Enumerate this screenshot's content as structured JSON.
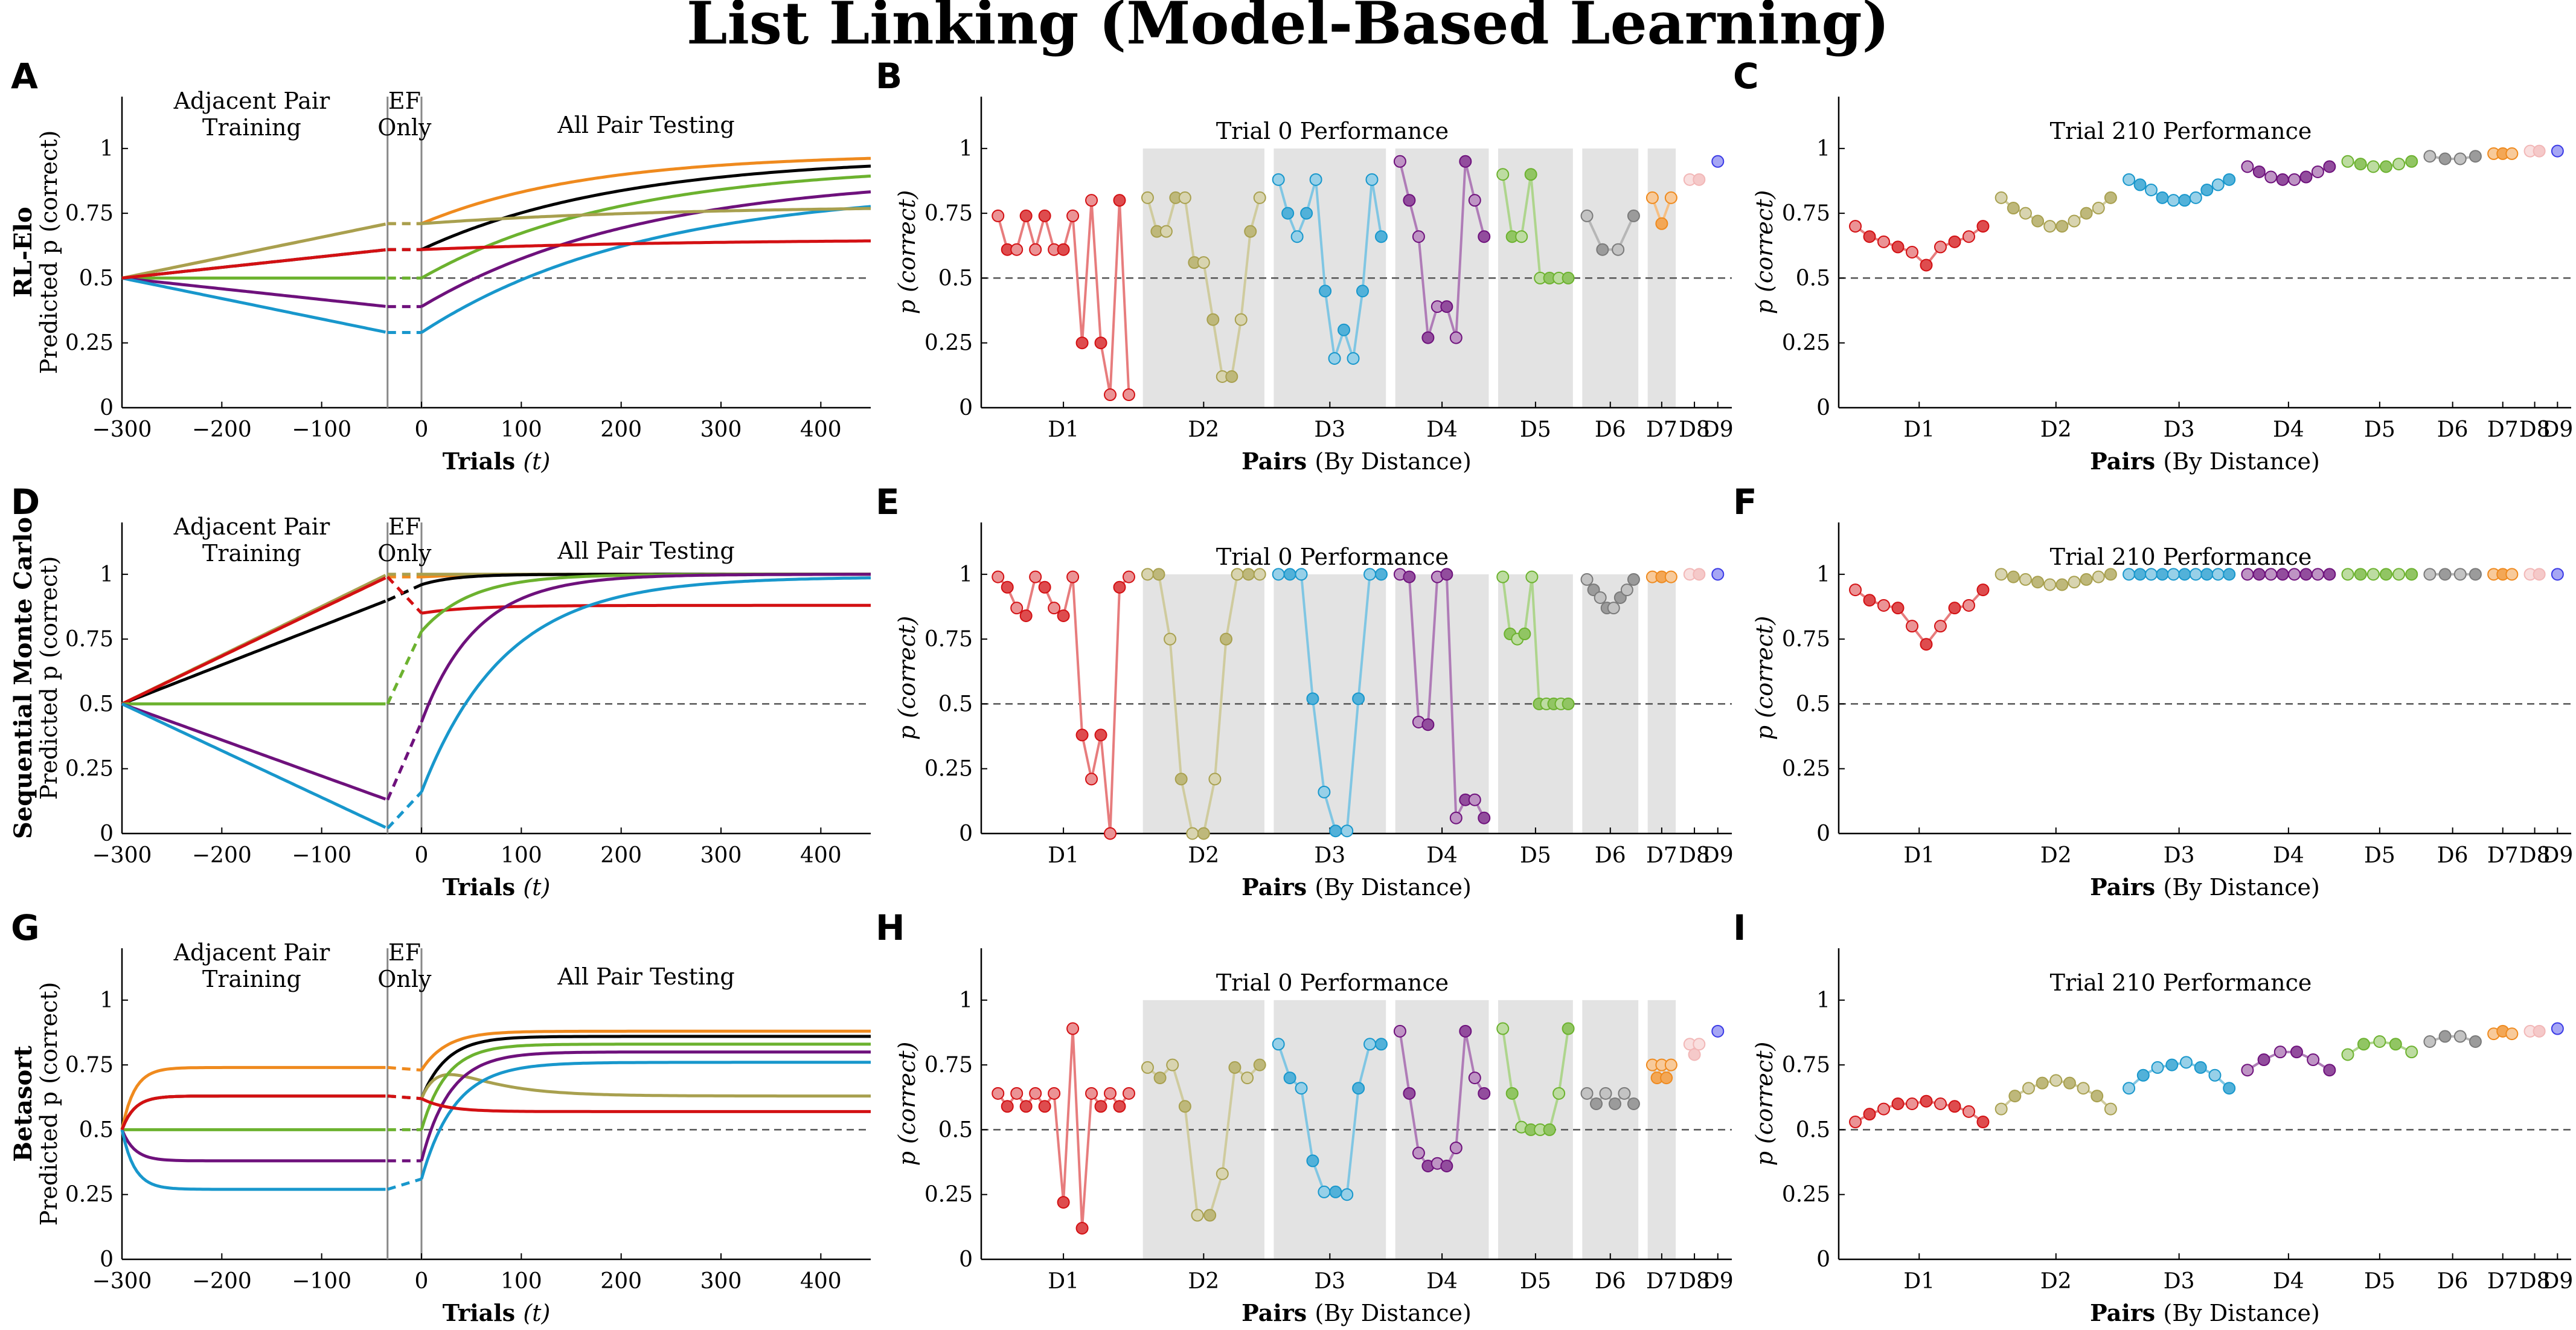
{
  "title": "List Linking (Model-Based Learning)",
  "colors": {
    "D1": "#d31013",
    "D2": "#a8a04f",
    "D3": "#1897cc",
    "D4": "#6e117c",
    "D5": "#6cb22f",
    "D6": "#7a7a7a",
    "D7": "#ef8a1e",
    "D8": "#f2b7b7",
    "D9": "#3a3ae6",
    "black": "#000000",
    "axis": "#000000",
    "ref": "#555555",
    "band": "#e3e3e3"
  },
  "rows": [
    {
      "id": "row1",
      "ylabel_bold": "RL-Elo",
      "ylabel": "Predicted p (correct)"
    },
    {
      "id": "row2",
      "ylabel_bold": "Sequential Monte Carlo",
      "ylabel": "Predicted p (correct)"
    },
    {
      "id": "row3",
      "ylabel_bold": "Betasort",
      "ylabel": "Predicted p (correct)"
    }
  ],
  "panel_letters": [
    "A",
    "B",
    "C",
    "D",
    "E",
    "F",
    "G",
    "H",
    "I"
  ],
  "yticks": [
    "0",
    "0.25",
    "0.5",
    "0.75",
    "1"
  ],
  "yticks_values": [
    0,
    0.25,
    0.5,
    0.75,
    1
  ],
  "xticks_time": [
    "−300",
    "−200",
    "−100",
    "0",
    "100",
    "200",
    "300",
    "400"
  ],
  "xticks_time_values": [
    -300,
    -200,
    -100,
    0,
    100,
    200,
    300,
    400
  ],
  "time_panel": {
    "phase_labels": {
      "training_1": "Adjacent Pair",
      "training_2": "Training",
      "ef_1": "EF",
      "ef_2": "Only",
      "testing": "All Pair Testing"
    },
    "xlabel_bold": "Trials",
    "xlabel_rest": "(t)",
    "xlim": [
      -300,
      450
    ],
    "ylim": [
      0,
      1.2
    ],
    "phase_bounds": [
      -34,
      0
    ]
  },
  "distance_panel": {
    "ylabel": "p (correct)",
    "xlabel_bold": "Pairs",
    "xlabel_rest": "(By Distance)",
    "titles": [
      "Trial 0 Performance",
      "Trial 210 Performance"
    ],
    "groups": [
      "D1",
      "D2",
      "D3",
      "D4",
      "D5",
      "D6",
      "D7",
      "D8",
      "D9"
    ]
  },
  "chart_data": [
    {
      "panel": "A",
      "type": "line",
      "title": "",
      "xlabel": "Trials (t)",
      "ylabel": "Predicted p (correct)",
      "xlim": [
        -300,
        450
      ],
      "ylim": [
        0,
        1.2
      ],
      "series": [
        {
          "name": "D7",
          "color_key": "D7",
          "pre_end": 0.71,
          "gap_end": 0.71,
          "final": 0.98,
          "rate": 0.006
        },
        {
          "name": "D6",
          "color_key": "black",
          "pre_end": 0.61,
          "gap_end": 0.61,
          "final": 0.97,
          "rate": 0.005
        },
        {
          "name": "D5",
          "color_key": "D5",
          "pre_end": 0.5,
          "gap_end": 0.5,
          "final": 0.94,
          "rate": 0.005
        },
        {
          "name": "D4",
          "color_key": "D4",
          "pre_end": 0.39,
          "gap_end": 0.39,
          "final": 0.9,
          "rate": 0.0045
        },
        {
          "name": "D3",
          "color_key": "D3",
          "pre_end": 0.29,
          "gap_end": 0.29,
          "final": 0.85,
          "rate": 0.0045
        },
        {
          "name": "D2",
          "color_key": "D2",
          "pre_end": 0.71,
          "gap_end": 0.71,
          "final": 0.78,
          "rate": 0.004
        },
        {
          "name": "D1",
          "color_key": "D1",
          "pre_end": 0.61,
          "gap_end": 0.61,
          "final": 0.65,
          "rate": 0.004
        }
      ]
    },
    {
      "panel": "B",
      "type": "scatter",
      "title": "Trial 0 Performance",
      "groups": {
        "D1": [
          0.74,
          0.61,
          0.61,
          0.74,
          0.61,
          0.74,
          0.61,
          0.61,
          0.74,
          0.25,
          0.8,
          0.25,
          0.05,
          0.8,
          0.05
        ],
        "D2": [
          0.81,
          0.68,
          0.68,
          0.81,
          0.81,
          0.56,
          0.56,
          0.34,
          0.12,
          0.12,
          0.34,
          0.68,
          0.81
        ],
        "D3": [
          0.88,
          0.75,
          0.66,
          0.75,
          0.88,
          0.45,
          0.19,
          0.3,
          0.19,
          0.45,
          0.88,
          0.66
        ],
        "D4": [
          0.95,
          0.8,
          0.66,
          0.27,
          0.39,
          0.39,
          0.27,
          0.95,
          0.8,
          0.66
        ],
        "D5": [
          0.9,
          0.66,
          0.66,
          0.9,
          0.5,
          0.5,
          0.5,
          0.5
        ],
        "D6": [
          0.74,
          0.61,
          0.61,
          0.74
        ],
        "D7": [
          0.81,
          0.71,
          0.81
        ],
        "D8": [
          0.88,
          0.88
        ],
        "D9": [
          0.95
        ]
      }
    },
    {
      "panel": "C",
      "type": "scatter",
      "title": "Trial 210 Performance",
      "groups": {
        "D1": [
          0.7,
          0.66,
          0.64,
          0.62,
          0.6,
          0.55,
          0.62,
          0.64,
          0.66,
          0.7
        ],
        "D2": [
          0.81,
          0.77,
          0.75,
          0.72,
          0.7,
          0.7,
          0.72,
          0.75,
          0.77,
          0.81
        ],
        "D3": [
          0.88,
          0.86,
          0.84,
          0.81,
          0.8,
          0.8,
          0.81,
          0.84,
          0.86,
          0.88
        ],
        "D4": [
          0.93,
          0.91,
          0.89,
          0.88,
          0.88,
          0.89,
          0.91,
          0.93
        ],
        "D5": [
          0.95,
          0.94,
          0.93,
          0.93,
          0.94,
          0.95
        ],
        "D6": [
          0.97,
          0.96,
          0.96,
          0.97
        ],
        "D7": [
          0.98,
          0.98,
          0.98
        ],
        "D8": [
          0.99,
          0.99
        ],
        "D9": [
          0.99
        ]
      }
    },
    {
      "panel": "D",
      "type": "line",
      "title": "",
      "xlabel": "Trials (t)",
      "ylabel": "Predicted p (correct)",
      "xlim": [
        -300,
        450
      ],
      "ylim": [
        0,
        1.2
      ],
      "series": [
        {
          "name": "D7",
          "color_key": "D7",
          "pre_end": 0.99,
          "gap_end": 0.99,
          "final": 1.0,
          "rate": 0.02
        },
        {
          "name": "D2",
          "color_key": "D2",
          "pre_end": 1.0,
          "gap_end": 1.0,
          "final": 1.0,
          "rate": 0.02
        },
        {
          "name": "D6",
          "color_key": "black",
          "pre_end": 0.9,
          "gap_end": 0.96,
          "final": 1.0,
          "rate": 0.03
        },
        {
          "name": "D1",
          "color_key": "D1",
          "pre_end": 0.99,
          "gap_end": 0.85,
          "final": 0.88,
          "rate": 0.02
        },
        {
          "name": "D5",
          "color_key": "D5",
          "pre_end": 0.5,
          "gap_end": 0.78,
          "final": 1.0,
          "rate": 0.02
        },
        {
          "name": "D4",
          "color_key": "D4",
          "pre_end": 0.13,
          "gap_end": 0.43,
          "final": 1.0,
          "rate": 0.018
        },
        {
          "name": "D3",
          "color_key": "D3",
          "pre_end": 0.02,
          "gap_end": 0.16,
          "final": 0.99,
          "rate": 0.012
        }
      ]
    },
    {
      "panel": "E",
      "type": "scatter",
      "title": "Trial 0 Performance",
      "groups": {
        "D1": [
          0.99,
          0.95,
          0.87,
          0.84,
          0.99,
          0.95,
          0.87,
          0.84,
          0.99,
          0.38,
          0.21,
          0.38,
          0.0,
          0.95,
          0.99
        ],
        "D2": [
          1.0,
          1.0,
          0.75,
          0.21,
          0.0,
          0.0,
          0.21,
          0.75,
          1.0,
          1.0,
          1.0
        ],
        "D3": [
          1.0,
          1.0,
          1.0,
          0.52,
          0.16,
          0.01,
          0.01,
          0.52,
          1.0,
          1.0
        ],
        "D4": [
          1.0,
          0.99,
          0.43,
          0.42,
          0.99,
          1.0,
          0.06,
          0.13,
          0.13,
          0.06
        ],
        "D5": [
          0.99,
          0.77,
          0.75,
          0.77,
          0.99,
          0.5,
          0.5,
          0.5,
          0.5,
          0.5
        ],
        "D6": [
          0.98,
          0.94,
          0.91,
          0.87,
          0.87,
          0.91,
          0.94,
          0.98
        ],
        "D7": [
          0.99,
          0.99,
          0.99
        ],
        "D8": [
          1.0,
          1.0
        ],
        "D9": [
          1.0
        ]
      }
    },
    {
      "panel": "F",
      "type": "scatter",
      "title": "Trial 210 Performance",
      "groups": {
        "D1": [
          0.94,
          0.9,
          0.88,
          0.87,
          0.8,
          0.73,
          0.8,
          0.87,
          0.88,
          0.94
        ],
        "D2": [
          1.0,
          0.99,
          0.98,
          0.97,
          0.96,
          0.96,
          0.97,
          0.98,
          0.99,
          1.0
        ],
        "D3": [
          1.0,
          1.0,
          1.0,
          1.0,
          1.0,
          1.0,
          1.0,
          1.0,
          1.0,
          1.0
        ],
        "D4": [
          1.0,
          1.0,
          1.0,
          1.0,
          1.0,
          1.0,
          1.0,
          1.0
        ],
        "D5": [
          1.0,
          1.0,
          1.0,
          1.0,
          1.0,
          1.0
        ],
        "D6": [
          1.0,
          1.0,
          1.0,
          1.0
        ],
        "D7": [
          1.0,
          1.0,
          1.0
        ],
        "D8": [
          1.0,
          1.0
        ],
        "D9": [
          1.0
        ]
      }
    },
    {
      "panel": "G",
      "type": "line",
      "title": "",
      "xlabel": "Trials (t)",
      "ylabel": "Predicted p (correct)",
      "xlim": [
        -300,
        450
      ],
      "ylim": [
        0,
        1.2
      ],
      "series": [
        {
          "name": "D7",
          "color_key": "D7",
          "pre_end": 0.74,
          "gap_end": 0.73,
          "final": 0.88,
          "rate": 0.04,
          "pre_rate": 0.08
        },
        {
          "name": "D6",
          "color_key": "black",
          "pre_end": 0.63,
          "gap_end": 0.62,
          "final": 0.86,
          "rate": 0.04,
          "pre_rate": 0.08
        },
        {
          "name": "D2",
          "color_key": "D2",
          "pre_end": 0.63,
          "gap_end": 0.62,
          "final": 0.63,
          "rate": 0.04,
          "pre_rate": 0.08,
          "peak": 0.85
        },
        {
          "name": "D5",
          "color_key": "D5",
          "pre_end": 0.5,
          "gap_end": 0.5,
          "final": 0.83,
          "rate": 0.04
        },
        {
          "name": "D4",
          "color_key": "D4",
          "pre_end": 0.38,
          "gap_end": 0.38,
          "final": 0.8,
          "rate": 0.035,
          "pre_rate": 0.08
        },
        {
          "name": "D3",
          "color_key": "D3",
          "pre_end": 0.27,
          "gap_end": 0.31,
          "final": 0.76,
          "rate": 0.03,
          "pre_rate": 0.08
        },
        {
          "name": "D1",
          "color_key": "D1",
          "pre_end": 0.63,
          "gap_end": 0.62,
          "final": 0.57,
          "rate": 0.04,
          "pre_rate": 0.08
        }
      ]
    },
    {
      "panel": "H",
      "type": "scatter",
      "title": "Trial 0 Performance",
      "groups": {
        "D1": [
          0.64,
          0.59,
          0.64,
          0.59,
          0.64,
          0.59,
          0.64,
          0.22,
          0.89,
          0.12,
          0.64,
          0.59,
          0.64,
          0.59,
          0.64
        ],
        "D2": [
          0.74,
          0.7,
          0.75,
          0.59,
          0.17,
          0.17,
          0.33,
          0.74,
          0.7,
          0.75
        ],
        "D3": [
          0.83,
          0.7,
          0.66,
          0.38,
          0.26,
          0.26,
          0.25,
          0.66,
          0.83,
          0.83
        ],
        "D4": [
          0.88,
          0.64,
          0.41,
          0.36,
          0.37,
          0.36,
          0.43,
          0.88,
          0.7,
          0.64
        ],
        "D5": [
          0.89,
          0.64,
          0.51,
          0.5,
          0.5,
          0.5,
          0.64,
          0.89
        ],
        "D6": [
          0.64,
          0.6,
          0.64,
          0.6,
          0.64,
          0.6
        ],
        "D7": [
          0.75,
          0.7,
          0.75,
          0.7,
          0.75
        ],
        "D8": [
          0.83,
          0.79,
          0.83
        ],
        "D9": [
          0.88
        ]
      }
    },
    {
      "panel": "I",
      "type": "scatter",
      "title": "Trial 210 Performance",
      "groups": {
        "D1": [
          0.53,
          0.56,
          0.58,
          0.6,
          0.6,
          0.61,
          0.6,
          0.59,
          0.57,
          0.53
        ],
        "D2": [
          0.58,
          0.63,
          0.66,
          0.68,
          0.69,
          0.68,
          0.66,
          0.63,
          0.58
        ],
        "D3": [
          0.66,
          0.71,
          0.74,
          0.75,
          0.76,
          0.74,
          0.71,
          0.66
        ],
        "D4": [
          0.73,
          0.77,
          0.8,
          0.8,
          0.77,
          0.73
        ],
        "D5": [
          0.79,
          0.83,
          0.84,
          0.83,
          0.8
        ],
        "D6": [
          0.84,
          0.86,
          0.86,
          0.84
        ],
        "D7": [
          0.87,
          0.88,
          0.87
        ],
        "D8": [
          0.88,
          0.88
        ],
        "D9": [
          0.89
        ]
      }
    }
  ]
}
